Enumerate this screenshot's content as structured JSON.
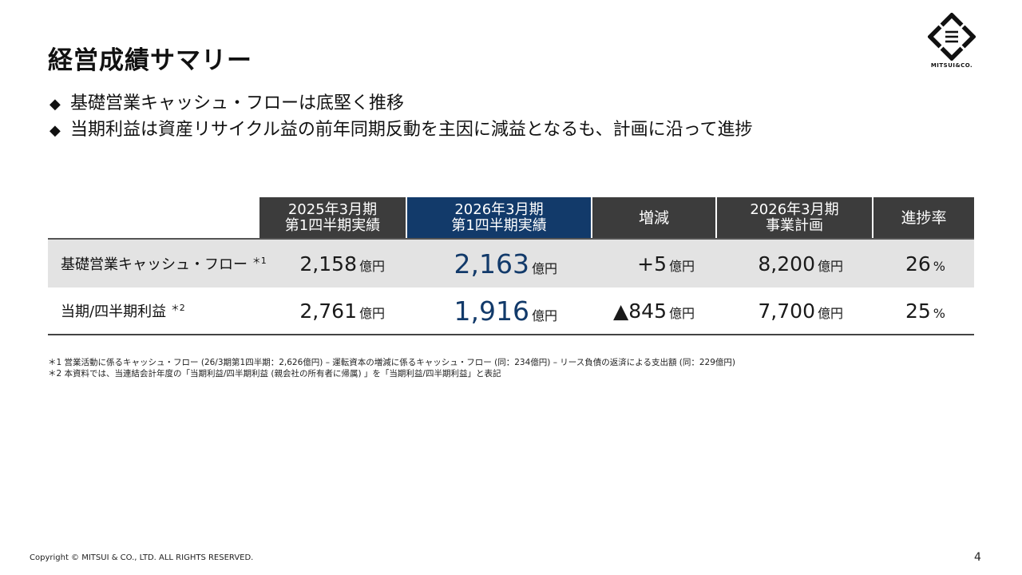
{
  "title": "経営成績サマリー",
  "logo": {
    "icon": "mitsui-logo-icon",
    "text": "MITSUI&CO."
  },
  "bullets": [
    {
      "mark": "◆",
      "text": "基礎営業キャッシュ・フローは底堅く推移"
    },
    {
      "mark": "◆",
      "text": "当期利益は資産リサイクル益の前年同期反動を主因に減益となるも、計画に沿って進捗"
    }
  ],
  "table": {
    "headers": [
      {
        "line1": "2025年3月期",
        "line2": "第1四半期実績"
      },
      {
        "line1": "2026年3月期",
        "line2": "第1四半期実績"
      },
      {
        "line1": "増減",
        "line2": ""
      },
      {
        "line1": "2026年3月期",
        "line2": "事業計画"
      },
      {
        "line1": "進捗率",
        "line2": ""
      }
    ],
    "rows": [
      {
        "label": "基礎営業キャッシュ・フロー",
        "note": "＊1",
        "prev": {
          "value": "2,158",
          "unit": "億円"
        },
        "curr": {
          "value": "2,163",
          "unit": "億円"
        },
        "diff": {
          "value": "+5",
          "unit": "億円"
        },
        "plan": {
          "value": "8,200",
          "unit": "億円"
        },
        "progress": {
          "value": "26",
          "unit": "%"
        }
      },
      {
        "label": "当期/四半期利益",
        "note": "＊2",
        "prev": {
          "value": "2,761",
          "unit": "億円"
        },
        "curr": {
          "value": "1,916",
          "unit": "億円"
        },
        "diff": {
          "value": "▲845",
          "unit": "億円"
        },
        "plan": {
          "value": "7,700",
          "unit": "億円"
        },
        "progress": {
          "value": "25",
          "unit": "%"
        }
      }
    ]
  },
  "notes": [
    "＊1 営業活動に係るキャッシュ・フロー (26/3期第1四半期：2,626億円) – 運転資本の増減に係るキャッシュ・フロー (同：234億円) – リース負債の返済による支出額 (同：229億円)",
    "＊2 本資料では、当連結会計年度の「当期利益/四半期利益 (親会社の所有者に帰属) 」を「当期利益/四半期利益」と表記"
  ],
  "footer": "Copyright © MITSUI & CO., LTD. ALL RIGHTS RESERVED.",
  "page_number": "4",
  "colors": {
    "header_dark": "#3c3c3c",
    "header_navy": "#123a6a",
    "row_shade": "#e3e3e3",
    "highlight_number": "#123a6a"
  }
}
